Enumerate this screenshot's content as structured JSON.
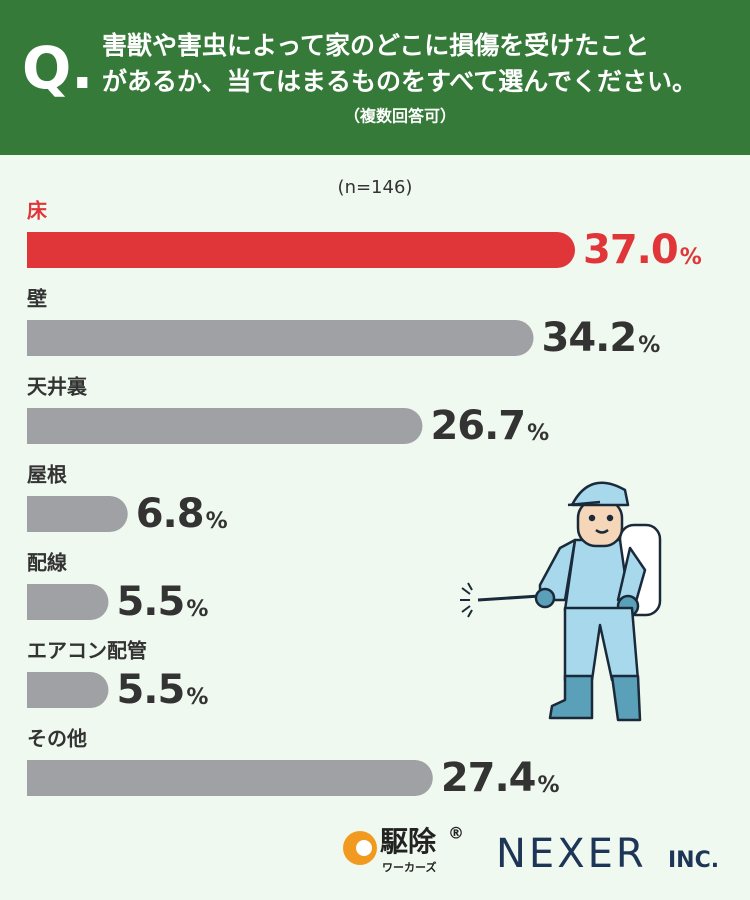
{
  "header": {
    "mark": "Q.",
    "lines": [
      "害獣や害虫によって家のどこに損傷を受けたこと",
      "があるか、当てはまるものをすべて選んでください。"
    ],
    "note": "（複数回答可）"
  },
  "chart_data": {
    "type": "bar",
    "orientation": "horizontal",
    "subtitle": "(n=146)",
    "categories": [
      "床",
      "壁",
      "天井裏",
      "屋根",
      "配線",
      "エアコン配管",
      "その他"
    ],
    "values": [
      37.0,
      34.2,
      26.7,
      6.8,
      5.5,
      5.5,
      27.4
    ],
    "value_labels": [
      "37.0",
      "34.2",
      "26.7",
      "6.8",
      "5.5",
      "5.5",
      "27.4"
    ],
    "value_suffix": "%",
    "colors": [
      "#e0363a",
      "#a0a1a5",
      "#a0a1a5",
      "#a0a1a5",
      "#a0a1a5",
      "#a0a1a5",
      "#a0a1a5"
    ],
    "xlim": [
      0,
      37
    ]
  },
  "footer": {
    "brand": "駆除",
    "registered": "®",
    "brand_sub": "ワーカーズ",
    "company": "NEXER",
    "company_suffix": "INC."
  }
}
